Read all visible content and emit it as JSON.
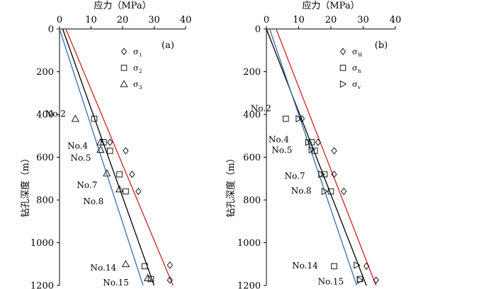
{
  "chart_data": [
    {
      "type": "scatter",
      "panel_label": "(a)",
      "xlabel": "应力（MPa）",
      "ylabel": "钻孔深度（m）",
      "xlim": [
        0,
        40
      ],
      "ylim": [
        0,
        1200
      ],
      "y_inverted": true,
      "x_axis_position": "top",
      "x_ticks": [
        0,
        10,
        20,
        30,
        40
      ],
      "y_ticks": [
        0,
        200,
        400,
        600,
        800,
        1000,
        1200
      ],
      "grid": false,
      "legend_position": "top-right",
      "series": [
        {
          "name": "σ1",
          "legend_main": "σ",
          "legend_sub": "1",
          "marker": "diamond",
          "points": [
            [
              16,
              530
            ],
            [
              21,
              570
            ],
            [
              23,
              680
            ],
            [
              25,
              760
            ],
            [
              35,
              1105
            ],
            [
              35,
              1175
            ]
          ]
        },
        {
          "name": "σ2",
          "legend_main": "σ",
          "legend_sub": "2",
          "marker": "square",
          "points": [
            [
              11,
              420
            ],
            [
              14,
              530
            ],
            [
              16,
              570
            ],
            [
              19,
              680
            ],
            [
              21,
              760
            ],
            [
              27,
              1110
            ],
            [
              29,
              1170
            ]
          ]
        },
        {
          "name": "σ3",
          "legend_main": "σ",
          "legend_sub": "3",
          "marker": "triangle",
          "points": [
            [
              5,
              420
            ],
            [
              13,
              530
            ],
            [
              13,
              565
            ],
            [
              15,
              675
            ],
            [
              19,
              750
            ],
            [
              21,
              1100
            ],
            [
              28,
              1165
            ]
          ]
        }
      ],
      "fit_lines": [
        {
          "color": "#cc2222",
          "from": [
            2,
            0
          ],
          "to": [
            36,
            1200
          ]
        },
        {
          "color": "#000000",
          "from": [
            1,
            0
          ],
          "to": [
            30,
            1200
          ]
        },
        {
          "color": "#3a6ea5",
          "from": [
            0,
            0
          ],
          "to": [
            26.5,
            1200
          ]
        }
      ],
      "annotations": [
        {
          "text": "No.2",
          "x": 2,
          "y": 410
        },
        {
          "text": "No.4",
          "x": 9,
          "y": 560
        },
        {
          "text": "No.5",
          "x": 10,
          "y": 617
        },
        {
          "text": "No.7",
          "x": 12,
          "y": 743
        },
        {
          "text": "No.8",
          "x": 14,
          "y": 820
        },
        {
          "text": "No.14",
          "x": 18,
          "y": 1130
        },
        {
          "text": "No.15",
          "x": 22,
          "y": 1200
        }
      ]
    },
    {
      "type": "scatter",
      "panel_label": "(b)",
      "xlabel": "应力（MPa）",
      "ylabel": "钻孔深度（m）",
      "xlim": [
        0,
        40
      ],
      "ylim": [
        0,
        1200
      ],
      "y_inverted": true,
      "x_axis_position": "top",
      "x_ticks": [
        0,
        10,
        20,
        30,
        40
      ],
      "y_ticks": [
        0,
        200,
        400,
        600,
        800,
        1000,
        1200
      ],
      "grid": false,
      "legend_position": "top-right",
      "series": [
        {
          "name": "σH",
          "legend_main": "σ",
          "legend_sub": "H",
          "marker": "diamond",
          "points": [
            [
              11,
              420
            ],
            [
              16,
              530
            ],
            [
              21,
              570
            ],
            [
              21,
              680
            ],
            [
              24,
              760
            ],
            [
              31,
              1110
            ],
            [
              34,
              1175
            ]
          ]
        },
        {
          "name": "σh",
          "legend_main": "σ",
          "legend_sub": "h",
          "marker": "square",
          "points": [
            [
              6,
              420
            ],
            [
              14,
              530
            ],
            [
              15,
              570
            ],
            [
              18,
              680
            ],
            [
              20,
              760
            ],
            [
              21,
              1110
            ],
            [
              29,
              1170
            ]
          ]
        },
        {
          "name": "σv",
          "legend_main": "σ",
          "legend_sub": "v",
          "marker": "triangle-right",
          "points": [
            [
              10,
              420
            ],
            [
              13,
              530
            ],
            [
              14,
              565
            ],
            [
              17,
              680
            ],
            [
              18,
              760
            ],
            [
              28,
              1105
            ],
            [
              29,
              1175
            ]
          ]
        }
      ],
      "fit_lines": [
        {
          "color": "#cc2222",
          "from": [
            3,
            0
          ],
          "to": [
            34,
            1200
          ]
        },
        {
          "color": "#000000",
          "from": [
            0,
            0
          ],
          "to": [
            31,
            1200
          ]
        },
        {
          "color": "#3a6ea5",
          "from": [
            1,
            0
          ],
          "to": [
            28,
            1200
          ]
        }
      ],
      "annotations": [
        {
          "text": "No.2",
          "x": 1.5,
          "y": 385
        },
        {
          "text": "No.4",
          "x": 7,
          "y": 530
        },
        {
          "text": "No.5",
          "x": 8,
          "y": 580
        },
        {
          "text": "No.7",
          "x": 12,
          "y": 700
        },
        {
          "text": "No.8",
          "x": 14,
          "y": 770
        },
        {
          "text": "No.14",
          "x": 16,
          "y": 1120
        },
        {
          "text": "No.15",
          "x": 24,
          "y": 1195
        }
      ]
    }
  ]
}
